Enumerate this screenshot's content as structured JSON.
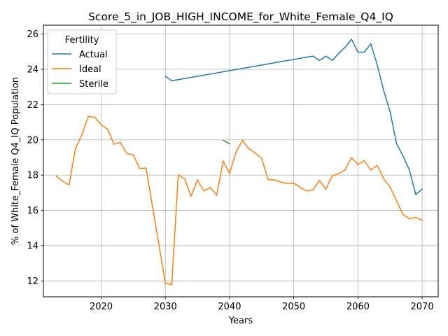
{
  "chart_data": {
    "type": "line",
    "title": "Score_5_in_JOB_HIGH_INCOME_for_White_Female_Q4_IQ",
    "xlabel": "Years",
    "ylabel": "% of White_Female Q4_IQ Population",
    "xlim": [
      2011,
      2072.5
    ],
    "ylim": [
      11.1,
      26.5
    ],
    "xticks": [
      2020,
      2030,
      2040,
      2050,
      2060,
      2070
    ],
    "yticks": [
      12,
      14,
      16,
      18,
      20,
      22,
      24,
      26
    ],
    "grid": true,
    "legend": {
      "title": "Fertility",
      "placement": "top-left"
    },
    "series": [
      {
        "name": "Actual",
        "color": "#1f77b4",
        "x": [
          2030,
          2031,
          2053,
          2054,
          2055,
          2056,
          2057,
          2058,
          2059,
          2060,
          2061,
          2062,
          2063,
          2064,
          2065,
          2066,
          2067,
          2068,
          2069,
          2070
        ],
        "y": [
          23.6,
          23.35,
          24.75,
          24.5,
          24.75,
          24.5,
          24.9,
          25.25,
          25.7,
          24.97,
          24.97,
          25.45,
          24.25,
          22.8,
          21.6,
          19.8,
          19.1,
          18.3,
          16.9,
          17.2
        ]
      },
      {
        "name": "Ideal",
        "color": "#ff7f0e",
        "x": [
          2013,
          2014,
          2015,
          2016,
          2017,
          2018,
          2019,
          2020,
          2021,
          2022,
          2023,
          2024,
          2025,
          2026,
          2027,
          2028,
          2029,
          2030,
          2031,
          2032,
          2033,
          2034,
          2035,
          2036,
          2037,
          2038,
          2039,
          2040,
          2041,
          2042,
          2043,
          2044,
          2045,
          2046,
          2047,
          2048,
          2049,
          2050,
          2051,
          2052,
          2053,
          2054,
          2055,
          2056,
          2057,
          2058,
          2059,
          2060,
          2061,
          2062,
          2063,
          2064,
          2065,
          2066,
          2067,
          2068,
          2069,
          2070
        ],
        "y": [
          17.95,
          17.65,
          17.45,
          19.5,
          20.3,
          21.33,
          21.28,
          20.85,
          20.6,
          19.75,
          19.85,
          19.22,
          19.15,
          18.38,
          18.4,
          16.2,
          14.05,
          11.88,
          11.78,
          18.0,
          17.8,
          16.8,
          17.73,
          17.1,
          17.3,
          16.85,
          18.8,
          18.1,
          19.3,
          19.97,
          19.5,
          19.25,
          18.95,
          17.75,
          17.73,
          17.6,
          17.52,
          17.55,
          17.3,
          17.1,
          17.15,
          17.7,
          17.2,
          17.97,
          18.08,
          18.3,
          19.0,
          18.6,
          18.82,
          18.28,
          18.55,
          17.8,
          17.33,
          16.55,
          15.78,
          15.52,
          15.6,
          15.43
        ]
      },
      {
        "name": "Sterile",
        "color": "#2ca02c",
        "x": [
          2039,
          2040
        ],
        "y": [
          19.98,
          19.78
        ]
      }
    ]
  }
}
